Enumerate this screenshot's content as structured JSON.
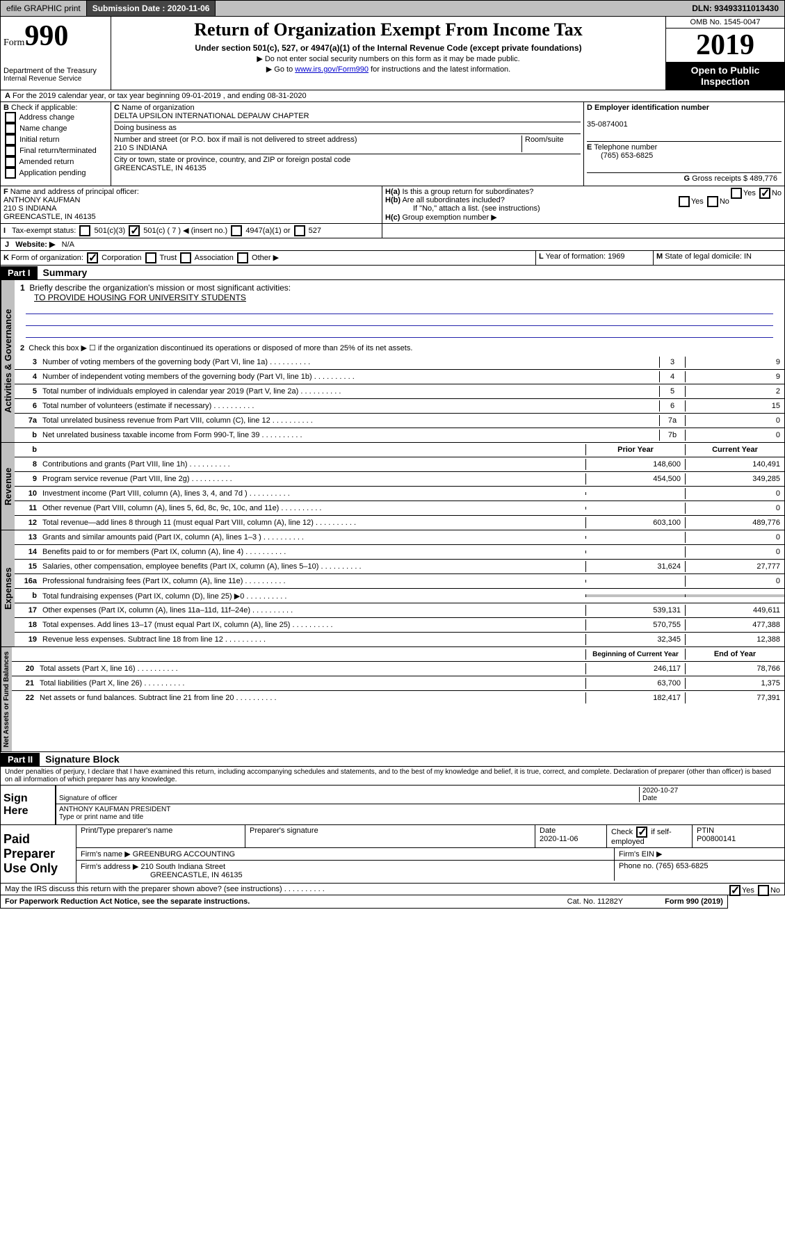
{
  "header": {
    "efile_label": "efile GRAPHIC print",
    "submission_label": "Submission Date : 2020-11-06",
    "dln": "DLN: 93493311013430"
  },
  "form_id": {
    "form_word": "Form",
    "number": "990",
    "dept": "Department of the Treasury",
    "irs": "Internal Revenue Service"
  },
  "title": {
    "main": "Return of Organization Exempt From Income Tax",
    "sub": "Under section 501(c), 527, or 4947(a)(1) of the Internal Revenue Code (except private foundations)",
    "note1": "▶ Do not enter social security numbers on this form as it may be made public.",
    "note2_pre": "▶ Go to ",
    "note2_link": "www.irs.gov/Form990",
    "note2_post": " for instructions and the latest information."
  },
  "right_box": {
    "omb": "OMB No. 1545-0047",
    "year": "2019",
    "open": "Open to Public Inspection"
  },
  "line_a": "For the 2019 calendar year, or tax year beginning 09-01-2019   , and ending 08-31-2020",
  "box_b": {
    "label": "Check if applicable:",
    "opts": [
      "Address change",
      "Name change",
      "Initial return",
      "Final return/terminated",
      "Amended return",
      "Application pending"
    ]
  },
  "box_c": {
    "label": "Name of organization",
    "name": "DELTA UPSILON INTERNATIONAL DEPAUW CHAPTER",
    "dba_label": "Doing business as",
    "addr_label": "Number and street (or P.O. box if mail is not delivered to street address)",
    "room_label": "Room/suite",
    "addr": "210 S INDIANA",
    "city_label": "City or town, state or province, country, and ZIP or foreign postal code",
    "city": "GREENCASTLE, IN  46135"
  },
  "box_d": {
    "label": "Employer identification number",
    "val": "35-0874001"
  },
  "box_e": {
    "label": "Telephone number",
    "val": "(765) 653-6825"
  },
  "box_g": {
    "label": "Gross receipts $",
    "val": "489,776"
  },
  "box_f": {
    "label": "Name and address of principal officer:",
    "name": "ANTHONY KAUFMAN",
    "addr1": "210 S INDIANA",
    "addr2": "GREENCASTLE, IN  46135"
  },
  "box_h": {
    "a_label": "Is this a group return for subordinates?",
    "b_label": "Are all subordinates included?",
    "b_note": "If \"No,\" attach a list. (see instructions)",
    "c_label": "Group exemption number ▶"
  },
  "tax_exempt": {
    "label": "Tax-exempt status:",
    "o1": "501(c)(3)",
    "o2": "501(c) ( 7 ) ◀ (insert no.)",
    "o3": "4947(a)(1) or",
    "o4": "527"
  },
  "website": {
    "label": "Website: ▶",
    "val": "N/A"
  },
  "box_k": {
    "label": "Form of organization:",
    "o1": "Corporation",
    "o2": "Trust",
    "o3": "Association",
    "o4": "Other ▶"
  },
  "box_l": {
    "label": "Year of formation:",
    "val": "1969"
  },
  "box_m": {
    "label": "State of legal domicile:",
    "val": "IN"
  },
  "part1": {
    "hdr": "Part I",
    "title": "Summary",
    "l1_label": "Briefly describe the organization's mission or most significant activities:",
    "l1_val": "TO PROVIDE HOUSING FOR UNIVERSITY STUDENTS",
    "l2": "Check this box ▶ ☐  if the organization discontinued its operations or disposed of more than 25% of its net assets.",
    "rows_gov": [
      {
        "n": "3",
        "t": "Number of voting members of the governing body (Part VI, line 1a)",
        "b": "3",
        "v": "9"
      },
      {
        "n": "4",
        "t": "Number of independent voting members of the governing body (Part VI, line 1b)",
        "b": "4",
        "v": "9"
      },
      {
        "n": "5",
        "t": "Total number of individuals employed in calendar year 2019 (Part V, line 2a)",
        "b": "5",
        "v": "2"
      },
      {
        "n": "6",
        "t": "Total number of volunteers (estimate if necessary)",
        "b": "6",
        "v": "15"
      },
      {
        "n": "7a",
        "t": "Total unrelated business revenue from Part VIII, column (C), line 12",
        "b": "7a",
        "v": "0"
      },
      {
        "n": "b",
        "t": "Net unrelated business taxable income from Form 990-T, line 39",
        "b": "7b",
        "v": "0"
      }
    ],
    "col_prior": "Prior Year",
    "col_current": "Current Year",
    "rows_rev": [
      {
        "n": "8",
        "t": "Contributions and grants (Part VIII, line 1h)",
        "p": "148,600",
        "c": "140,491"
      },
      {
        "n": "9",
        "t": "Program service revenue (Part VIII, line 2g)",
        "p": "454,500",
        "c": "349,285"
      },
      {
        "n": "10",
        "t": "Investment income (Part VIII, column (A), lines 3, 4, and 7d )",
        "p": "",
        "c": "0"
      },
      {
        "n": "11",
        "t": "Other revenue (Part VIII, column (A), lines 5, 6d, 8c, 9c, 10c, and 11e)",
        "p": "",
        "c": "0"
      },
      {
        "n": "12",
        "t": "Total revenue—add lines 8 through 11 (must equal Part VIII, column (A), line 12)",
        "p": "603,100",
        "c": "489,776"
      }
    ],
    "rows_exp": [
      {
        "n": "13",
        "t": "Grants and similar amounts paid (Part IX, column (A), lines 1–3 )",
        "p": "",
        "c": "0"
      },
      {
        "n": "14",
        "t": "Benefits paid to or for members (Part IX, column (A), line 4)",
        "p": "",
        "c": "0"
      },
      {
        "n": "15",
        "t": "Salaries, other compensation, employee benefits (Part IX, column (A), lines 5–10)",
        "p": "31,624",
        "c": "27,777"
      },
      {
        "n": "16a",
        "t": "Professional fundraising fees (Part IX, column (A), line 11e)",
        "p": "",
        "c": "0"
      },
      {
        "n": "b",
        "t": "Total fundraising expenses (Part IX, column (D), line 25) ▶0",
        "p": "grey",
        "c": "grey"
      },
      {
        "n": "17",
        "t": "Other expenses (Part IX, column (A), lines 11a–11d, 11f–24e)",
        "p": "539,131",
        "c": "449,611"
      },
      {
        "n": "18",
        "t": "Total expenses. Add lines 13–17 (must equal Part IX, column (A), line 25)",
        "p": "570,755",
        "c": "477,388"
      },
      {
        "n": "19",
        "t": "Revenue less expenses. Subtract line 18 from line 12",
        "p": "32,345",
        "c": "12,388"
      }
    ],
    "col_begin": "Beginning of Current Year",
    "col_end": "End of Year",
    "rows_net": [
      {
        "n": "20",
        "t": "Total assets (Part X, line 16)",
        "p": "246,117",
        "c": "78,766"
      },
      {
        "n": "21",
        "t": "Total liabilities (Part X, line 26)",
        "p": "63,700",
        "c": "1,375"
      },
      {
        "n": "22",
        "t": "Net assets or fund balances. Subtract line 21 from line 20",
        "p": "182,417",
        "c": "77,391"
      }
    ]
  },
  "part2": {
    "hdr": "Part II",
    "title": "Signature Block",
    "decl": "Under penalties of perjury, I declare that I have examined this return, including accompanying schedules and statements, and to the best of my knowledge and belief, it is true, correct, and complete. Declaration of preparer (other than officer) is based on all information of which preparer has any knowledge."
  },
  "sign": {
    "label": "Sign Here",
    "sig_label": "Signature of officer",
    "date": "2020-10-27",
    "date_label": "Date",
    "name": "ANTHONY KAUFMAN  PRESIDENT",
    "name_label": "Type or print name and title"
  },
  "paid": {
    "label": "Paid Preparer Use Only",
    "h1": "Print/Type preparer's name",
    "h2": "Preparer's signature",
    "h3": "Date",
    "date": "2020-11-06",
    "h4_pre": "Check",
    "h4_post": "if self-employed",
    "h5": "PTIN",
    "ptin": "P00800141",
    "firm_label": "Firm's name    ▶",
    "firm": "GREENBURG ACCOUNTING",
    "ein_label": "Firm's EIN ▶",
    "addr_label": "Firm's address ▶",
    "addr1": "210 South Indiana Street",
    "addr2": "GREENCASTLE, IN  46135",
    "phone_label": "Phone no.",
    "phone": "(765) 653-6825"
  },
  "discuss": "May the IRS discuss this return with the preparer shown above? (see instructions)",
  "footer": {
    "l": "For Paperwork Reduction Act Notice, see the separate instructions.",
    "c": "Cat. No. 11282Y",
    "r": "Form 990 (2019)"
  },
  "vtabs": {
    "gov": "Activities & Governance",
    "rev": "Revenue",
    "exp": "Expenses",
    "net": "Net Assets or Fund Balances"
  }
}
